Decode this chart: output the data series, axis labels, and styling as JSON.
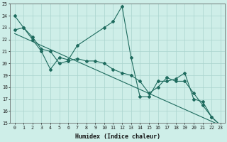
{
  "xlabel": "Humidex (Indice chaleur)",
  "bg_color": "#ceeee8",
  "grid_color": "#aad4ce",
  "line_color": "#1e6b5e",
  "xlim": [
    -0.5,
    23.5
  ],
  "ylim": [
    15,
    25
  ],
  "xticks": [
    0,
    1,
    2,
    3,
    4,
    5,
    6,
    7,
    8,
    9,
    10,
    11,
    12,
    13,
    14,
    15,
    16,
    17,
    18,
    19,
    20,
    21,
    22,
    23
  ],
  "yticks": [
    15,
    16,
    17,
    18,
    19,
    20,
    21,
    22,
    23,
    24,
    25
  ],
  "series1_x": [
    0,
    1,
    2,
    3,
    4,
    5,
    6,
    7,
    10,
    11,
    12,
    13,
    14,
    15,
    16,
    17,
    18,
    19,
    20,
    21,
    22,
    23
  ],
  "series1_y": [
    24,
    23,
    22,
    21,
    19.5,
    20.5,
    20.3,
    21.5,
    23.0,
    23.5,
    24.8,
    20.5,
    17.2,
    17.2,
    18.5,
    18.5,
    18.7,
    19.2,
    17.0,
    16.8,
    15.5,
    14.8
  ],
  "series2_x": [
    0,
    1,
    2,
    3,
    4,
    5,
    6,
    7,
    8,
    9,
    10,
    11,
    12,
    13,
    14,
    15,
    16,
    17,
    18,
    19,
    20,
    21,
    22,
    23
  ],
  "series2_y": [
    22.8,
    23.0,
    22.2,
    21.2,
    21.0,
    20.0,
    20.2,
    20.4,
    20.2,
    20.2,
    20.0,
    19.5,
    19.2,
    19.0,
    18.5,
    17.5,
    18.0,
    18.8,
    18.5,
    18.5,
    17.5,
    16.5,
    15.5,
    14.8
  ],
  "series3_x": [
    0,
    23
  ],
  "series3_y": [
    22.5,
    14.8
  ]
}
